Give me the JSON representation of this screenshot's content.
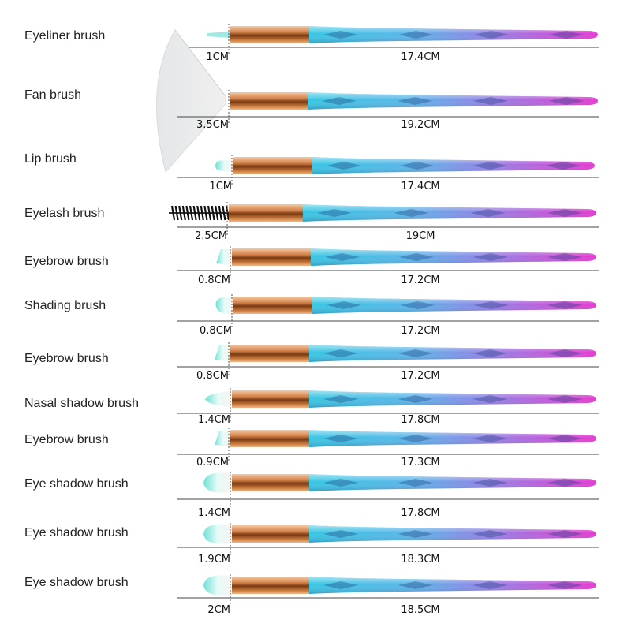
{
  "colors": {
    "bristle": "#f4f1ec",
    "bristle_tip": "#7fe3dc",
    "ferrule": "#c8783a",
    "ferrule_light": "#f4c39b",
    "handle_start": "#3fc7e4",
    "handle_end": "#e23ed2",
    "ruler_line": "#444444",
    "label_text": "#222222"
  },
  "brushes": [
    {
      "name": "Eyeliner brush",
      "head_length": "1CM",
      "handle_length": "17.4CM",
      "head_type": "eyeliner"
    },
    {
      "name": "Fan brush",
      "head_length": "3.5CM",
      "handle_length": "19.2CM",
      "head_type": "fan"
    },
    {
      "name": "Lip brush",
      "head_length": "1CM",
      "handle_length": "17.4CM",
      "head_type": "lip"
    },
    {
      "name": "Eyelash brush",
      "head_length": "2.5CM",
      "handle_length": "19CM",
      "head_type": "spoolie"
    },
    {
      "name": "Eyebrow brush",
      "head_length": "0.8CM",
      "handle_length": "17.2CM",
      "head_type": "angled"
    },
    {
      "name": "Shading brush",
      "head_length": "0.8CM",
      "handle_length": "17.2CM",
      "head_type": "round"
    },
    {
      "name": "Eyebrow brush",
      "head_length": "0.8CM",
      "handle_length": "17.2CM",
      "head_type": "angled"
    },
    {
      "name": "Nasal shadow brush",
      "head_length": "1.4CM",
      "handle_length": "17.8CM",
      "head_type": "tapered"
    },
    {
      "name": "Eyebrow brush",
      "head_length": "0.9CM",
      "handle_length": "17.3CM",
      "head_type": "angled"
    },
    {
      "name": "Eye shadow brush",
      "head_length": "1.4CM",
      "handle_length": "17.8CM",
      "head_type": "flat"
    },
    {
      "name": "Eye shadow brush",
      "head_length": "1.9CM",
      "handle_length": "18.3CM",
      "head_type": "flat"
    },
    {
      "name": "Eye shadow brush",
      "head_length": "2CM",
      "handle_length": "18.5CM",
      "head_type": "flat"
    }
  ]
}
